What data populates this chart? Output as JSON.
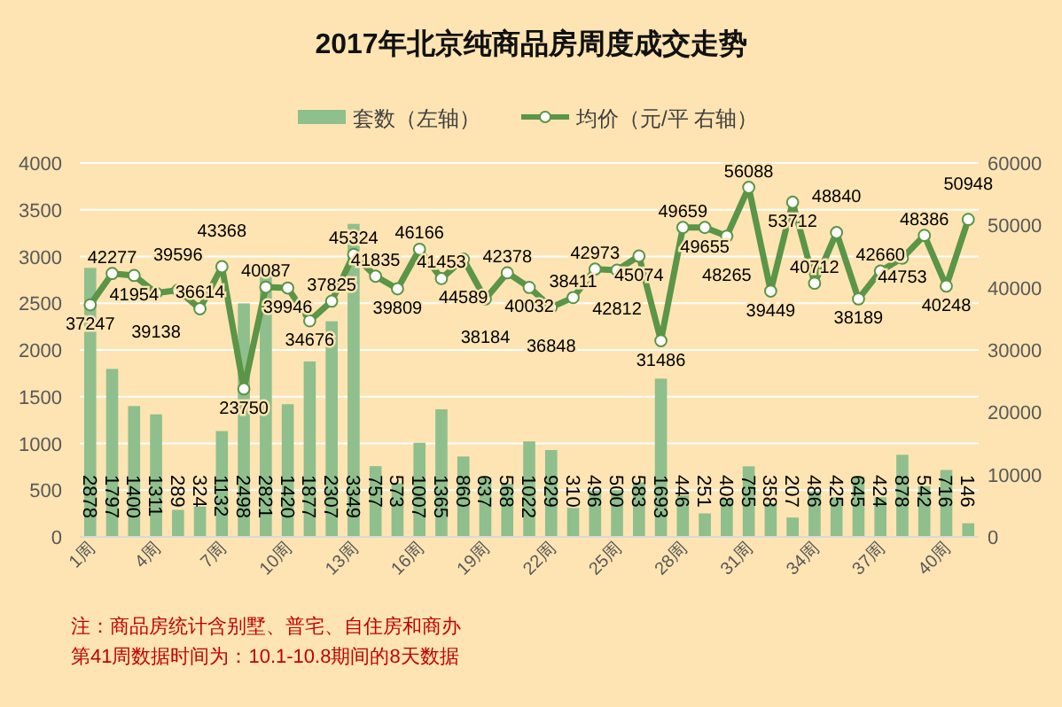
{
  "chart_data": {
    "type": "bar",
    "title": "2017年北京纯商品房周度成交走势",
    "categories": [
      "1周",
      null,
      null,
      "4周",
      null,
      null,
      "7周",
      null,
      null,
      "10周",
      null,
      null,
      "13周",
      null,
      null,
      "16周",
      null,
      null,
      "19周",
      null,
      null,
      "22周",
      null,
      null,
      "25周",
      null,
      null,
      "28周",
      null,
      null,
      "31周",
      null,
      null,
      "34周",
      null,
      null,
      "37周",
      null,
      null,
      "40周",
      null
    ],
    "series": [
      {
        "name": "套数（左轴）",
        "color": "#8fbf8c",
        "values": [
          2878,
          1797,
          1400,
          1311,
          289,
          324,
          1132,
          2498,
          2821,
          1420,
          1877,
          2307,
          3349,
          757,
          573,
          1007,
          1365,
          860,
          637,
          568,
          1022,
          929,
          310,
          496,
          500,
          583,
          1693,
          446,
          251,
          408,
          755,
          358,
          207,
          486,
          425,
          645,
          424,
          878,
          542,
          716,
          146
        ]
      },
      {
        "name": "均价（元/平 右轴）",
        "type": "line",
        "axis": "y2",
        "color": "#5b9547",
        "marker": "circle",
        "values": [
          37247,
          42277,
          41954,
          39138,
          39596,
          36614,
          43368,
          23750,
          40087,
          39946,
          34676,
          37825,
          45324,
          41835,
          39809,
          46166,
          41453,
          44589,
          38184,
          42378,
          40032,
          36848,
          38411,
          42973,
          42812,
          45074,
          31486,
          49659,
          49655,
          48265,
          56088,
          39449,
          53712,
          40712,
          48840,
          38189,
          42660,
          44753,
          48386,
          40248,
          50948
        ]
      }
    ],
    "ylim": [
      0,
      4000
    ],
    "yticks": [
      0,
      500,
      1000,
      1500,
      2000,
      2500,
      3000,
      3500,
      4000
    ],
    "y2lim": [
      0,
      60000
    ],
    "y2ticks": [
      0,
      10000,
      20000,
      30000,
      40000,
      50000,
      60000
    ],
    "grid": "y",
    "legend": "top",
    "data_labels": true,
    "annotations": [
      "注：商品房统计含别墅、普宅、自住房和商办",
      "第41周数据时间为：10.1-10.8期间的8天数据"
    ]
  }
}
